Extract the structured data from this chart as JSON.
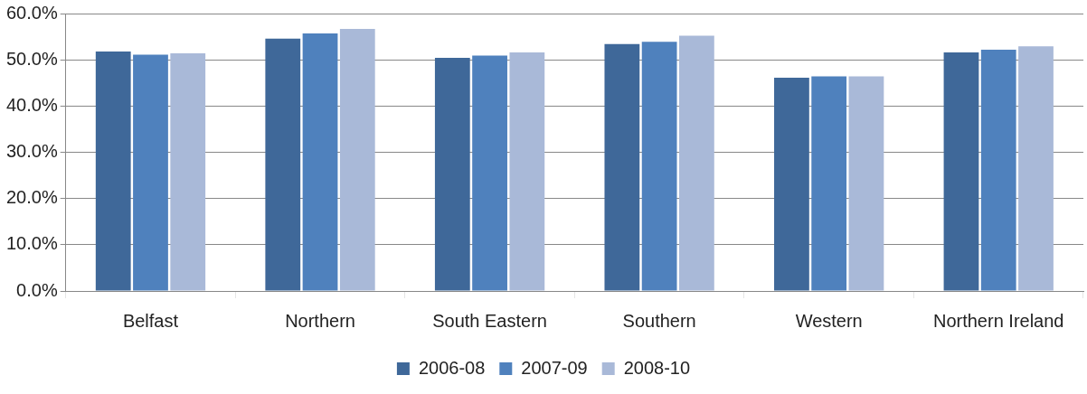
{
  "chart_data": {
    "type": "bar",
    "categories": [
      "Belfast",
      "Northern",
      "South Eastern",
      "Southern",
      "Western",
      "Northern Ireland"
    ],
    "series": [
      {
        "name": "2006-08",
        "color": "#3f6899",
        "values": [
          51.8,
          54.6,
          50.4,
          53.4,
          46.1,
          51.6
        ]
      },
      {
        "name": "2007-09",
        "color": "#4f81bd",
        "values": [
          51.1,
          55.7,
          50.9,
          53.9,
          46.4,
          52.2
        ]
      },
      {
        "name": "2008-10",
        "color": "#a9b9d8",
        "values": [
          51.4,
          56.7,
          51.6,
          55.2,
          46.4,
          52.9
        ]
      }
    ],
    "ylim": [
      0,
      60
    ],
    "yticks": [
      {
        "value": 0,
        "label": "0.0%"
      },
      {
        "value": 10,
        "label": "10.0%"
      },
      {
        "value": 20,
        "label": "20.0%"
      },
      {
        "value": 30,
        "label": "30.0%"
      },
      {
        "value": 40,
        "label": "40.0%"
      },
      {
        "value": 50,
        "label": "50.0%"
      },
      {
        "value": 60,
        "label": "60.0%"
      }
    ],
    "grid": "y",
    "legend": "bottom"
  }
}
